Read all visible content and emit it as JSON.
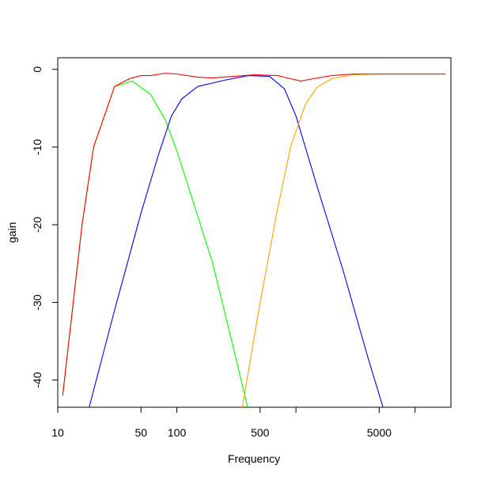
{
  "chart_data": {
    "type": "line",
    "title": "",
    "xlabel": "Frequency",
    "ylabel": "gain",
    "x_scale": "log",
    "xlim": [
      10,
      20000
    ],
    "ylim": [
      -43.5,
      1.5
    ],
    "grid": false,
    "legend": "none",
    "x_ticks": [
      {
        "value": 10,
        "label": "10"
      },
      {
        "value": 50,
        "label": "50"
      },
      {
        "value": 100,
        "label": "100"
      },
      {
        "value": 500,
        "label": "500"
      },
      {
        "value": 1000,
        "label": ""
      },
      {
        "value": 5000,
        "label": "5000"
      },
      {
        "value": 10000,
        "label": ""
      }
    ],
    "y_ticks": [
      {
        "value": 0,
        "label": "0"
      },
      {
        "value": -10,
        "label": "-10"
      },
      {
        "value": -20,
        "label": "-20"
      },
      {
        "value": -30,
        "label": "-30"
      },
      {
        "value": -40,
        "label": "-40"
      }
    ],
    "series": [
      {
        "color": "#00ff00",
        "points": [
          [
            11,
            -42
          ],
          [
            16,
            -20
          ],
          [
            20,
            -10
          ],
          [
            30,
            -2.2
          ],
          [
            42,
            -1.5
          ],
          [
            60,
            -3.2
          ],
          [
            80,
            -6.5
          ],
          [
            100,
            -10.5
          ],
          [
            140,
            -17.5
          ],
          [
            200,
            -25
          ],
          [
            300,
            -36
          ],
          [
            400,
            -44
          ]
        ]
      },
      {
        "color": "#0000ff",
        "points": [
          [
            18,
            -44
          ],
          [
            30,
            -31
          ],
          [
            50,
            -18.5
          ],
          [
            70,
            -11
          ],
          [
            90,
            -6
          ],
          [
            110,
            -3.8
          ],
          [
            150,
            -2.2
          ],
          [
            250,
            -1.4
          ],
          [
            400,
            -0.8
          ],
          [
            600,
            -0.9
          ],
          [
            800,
            -2.5
          ],
          [
            1000,
            -6
          ],
          [
            1500,
            -15
          ],
          [
            2500,
            -26
          ],
          [
            4000,
            -37
          ],
          [
            5500,
            -44
          ]
        ]
      },
      {
        "color": "#ffa500",
        "points": [
          [
            350,
            -44
          ],
          [
            500,
            -30
          ],
          [
            700,
            -18
          ],
          [
            900,
            -10
          ],
          [
            1200,
            -4.5
          ],
          [
            1500,
            -2.3
          ],
          [
            2000,
            -1.2
          ],
          [
            3000,
            -0.7
          ],
          [
            5000,
            -0.6
          ],
          [
            10000,
            -0.6
          ],
          [
            18000,
            -0.6
          ]
        ]
      },
      {
        "color": "#ff0000",
        "points": [
          [
            11,
            -42
          ],
          [
            16,
            -20
          ],
          [
            20,
            -10
          ],
          [
            30,
            -2.2
          ],
          [
            40,
            -1.2
          ],
          [
            50,
            -0.8
          ],
          [
            60,
            -0.8
          ],
          [
            80,
            -0.5
          ],
          [
            100,
            -0.6
          ],
          [
            150,
            -1.0
          ],
          [
            200,
            -1.1
          ],
          [
            300,
            -0.9
          ],
          [
            450,
            -0.7
          ],
          [
            700,
            -0.8
          ],
          [
            900,
            -1.2
          ],
          [
            1100,
            -1.5
          ],
          [
            1400,
            -1.2
          ],
          [
            2000,
            -0.8
          ],
          [
            3000,
            -0.6
          ],
          [
            5000,
            -0.6
          ],
          [
            10000,
            -0.6
          ],
          [
            18000,
            -0.6
          ]
        ]
      }
    ]
  }
}
